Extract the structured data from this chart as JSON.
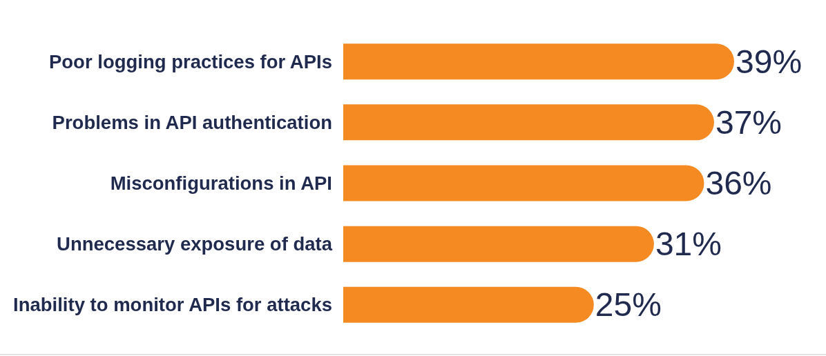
{
  "chart_data": {
    "type": "bar",
    "orientation": "horizontal",
    "categories": [
      "Poor logging practices for APIs",
      "Problems in API authentication",
      "Misconfigurations in API",
      "Unnecessary exposure of data",
      "Inability to monitor APIs for attacks"
    ],
    "values": [
      39,
      37,
      36,
      31,
      25
    ],
    "color": "#f58a22",
    "value_labels": [
      "39%",
      "37%",
      "36%",
      "31%",
      "25%"
    ]
  }
}
